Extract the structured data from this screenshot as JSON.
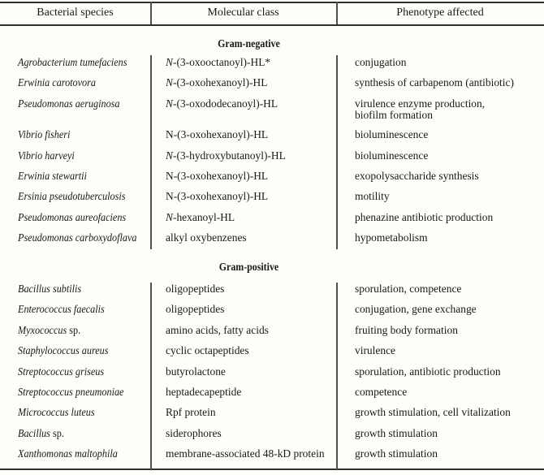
{
  "table": {
    "headers": [
      "Bacterial species",
      "Molecular class",
      "Phenotype affected"
    ],
    "sections": [
      {
        "title": "Gram-negative",
        "rows": [
          {
            "species_italic": "Agrobacterium tumefaciens",
            "species_roman": "",
            "mol_italic": "N",
            "mol_rest": "-(3-oxooctanoyl)-HL*",
            "phenotype": [
              "conjugation"
            ]
          },
          {
            "species_italic": "Erwinia carotovora",
            "species_roman": "",
            "mol_italic": "N",
            "mol_rest": "-(3-oxohexanoyl)-HL",
            "phenotype": [
              "synthesis of carbapenom (antibiotic)"
            ]
          },
          {
            "species_italic": "Pseudomonas aeruginosa",
            "species_roman": "",
            "mol_italic": "N",
            "mol_rest": "-(3-oxododecanoyl)-HL",
            "phenotype": [
              "virulence enzyme production,",
              "biofilm formation"
            ]
          },
          {
            "species_italic": "Vibrio fisheri",
            "species_roman": "",
            "mol_italic": "",
            "mol_rest": "N-(3-oxohexanoyl)-HL",
            "phenotype": [
              "bioluminescence"
            ]
          },
          {
            "species_italic": "Vibrio harveyi",
            "species_roman": "",
            "mol_italic": "N",
            "mol_rest": "-(3-hydroxybutanoyl)-HL",
            "phenotype": [
              "bioluminescence"
            ]
          },
          {
            "species_italic": "Erwinia stewartii",
            "species_roman": "",
            "mol_italic": "",
            "mol_rest": "N-(3-oxohexanoyl)-HL",
            "phenotype": [
              "exopolysaccharide synthesis"
            ]
          },
          {
            "species_italic": "Ersinia pseudotuberculosis",
            "species_roman": "",
            "mol_italic": "",
            "mol_rest": "N-(3-oxohexanoyl)-HL",
            "phenotype": [
              "motility"
            ]
          },
          {
            "species_italic": "Pseudomonas aureofaciens",
            "species_roman": "",
            "mol_italic": "N",
            "mol_rest": "-hexanoyl-HL",
            "phenotype": [
              "phenazine antibiotic production"
            ]
          },
          {
            "species_italic": "Pseudomonas carboxydoflava",
            "species_roman": "",
            "mol_italic": "",
            "mol_rest": "alkyl oxybenzenes",
            "phenotype": [
              "hypometabolism"
            ]
          }
        ]
      },
      {
        "title": "Gram-positive",
        "rows": [
          {
            "species_italic": "Bacillus subtilis",
            "species_roman": "",
            "mol_italic": "",
            "mol_rest": "oligopeptides",
            "phenotype": [
              "sporulation, competence"
            ]
          },
          {
            "species_italic": "Enterococcus faecalis",
            "species_roman": "",
            "mol_italic": "",
            "mol_rest": "oligopeptides",
            "phenotype": [
              "conjugation, gene exchange"
            ]
          },
          {
            "species_italic": "Myxococcus",
            "species_roman": " sp.",
            "mol_italic": "",
            "mol_rest": "amino acids, fatty acids",
            "phenotype": [
              "fruiting body formation"
            ]
          },
          {
            "species_italic": "Staphylococcus aureus",
            "species_roman": "",
            "mol_italic": "",
            "mol_rest": "cyclic octapeptides",
            "phenotype": [
              "virulence"
            ]
          },
          {
            "species_italic": "Streptococcus griseus",
            "species_roman": "",
            "mol_italic": "",
            "mol_rest": "butyrolactone",
            "phenotype": [
              "sporulation, antibiotic production"
            ]
          },
          {
            "species_italic": "Streptococcus pneumoniae",
            "species_roman": "",
            "mol_italic": "",
            "mol_rest": "heptadecapeptide",
            "phenotype": [
              "competence"
            ]
          },
          {
            "species_italic": "Micrococcus luteus",
            "species_roman": "",
            "mol_italic": "",
            "mol_rest": "Rpf protein",
            "phenotype": [
              "growth stimulation, cell vitalization"
            ]
          },
          {
            "species_italic": "Bacillus",
            "species_roman": " sp.",
            "mol_italic": "",
            "mol_rest": "siderophores",
            "phenotype": [
              "growth stimulation"
            ]
          },
          {
            "species_italic": "Xanthomonas maltophila",
            "species_roman": "",
            "mol_italic": "",
            "mol_rest": "membrane-associated 48-kD protein",
            "phenotype": [
              "growth stimulation"
            ]
          }
        ]
      }
    ]
  }
}
